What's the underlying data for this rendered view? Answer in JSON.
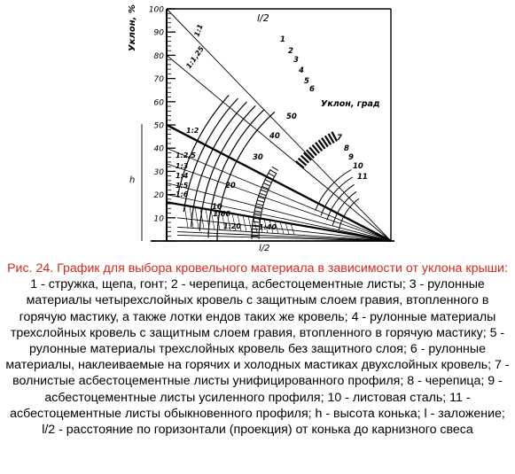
{
  "figure": {
    "scale_label": "Уклон, %",
    "scale_ticks": [
      "10",
      "20",
      "30",
      "40",
      "50",
      "60",
      "70",
      "80",
      "90",
      "100"
    ],
    "arc_scale_label": "Уклон, град",
    "arc_degree_labels": [
      "10",
      "20",
      "30",
      "40",
      "50"
    ],
    "ratio_labels": [
      "1:1",
      "1:1,25",
      "1:2",
      "1:2,5",
      "1:3",
      "1:4",
      "1:5",
      "1:6",
      "1:66",
      "1:20",
      "1:40"
    ],
    "material_numbers": [
      "1",
      "2",
      "3",
      "4",
      "5",
      "6",
      "7",
      "8",
      "9",
      "10",
      "11"
    ],
    "height_label": "h",
    "half_span_label": "l/2",
    "base_label": "l/2",
    "colors": {
      "ink": "#000000",
      "caption_title": "#d8261e"
    }
  },
  "caption": {
    "title": "Рис. 24. График для выбора кровельного материала в зависимости от уклона крыши:",
    "body": "1 - стружка, щепа, гонт; 2 - черепица, асбестоцементные листы; 3 - рулонные материалы четырехслойных кровель с защитным слоем гравия, втопленного в горячую мастику, а также лотки ендов таких же кровель; 4 - рулонные материалы трехслойных кровель с защитным слоем гравия, втопленного в горячую мастику; 5 - рулонные материалы трехслойных кровель без защитного слоя; 6 - рулонные материалы, наклеиваемые на горячих и холодных мастиках двухслойных кровель; 7 - волнистые асбестоцементные листы унифицированного профиля; 8 - черепица; 9 - асбестоцементные листы усиленного профиля; 10 - листовая сталь; 11 - асбестоцементные листы обыкновенного профиля; h - высота конька; l - заложение; l/2 - расстояние по горизонтали (проекция) от конька до карнизного свеса"
  }
}
